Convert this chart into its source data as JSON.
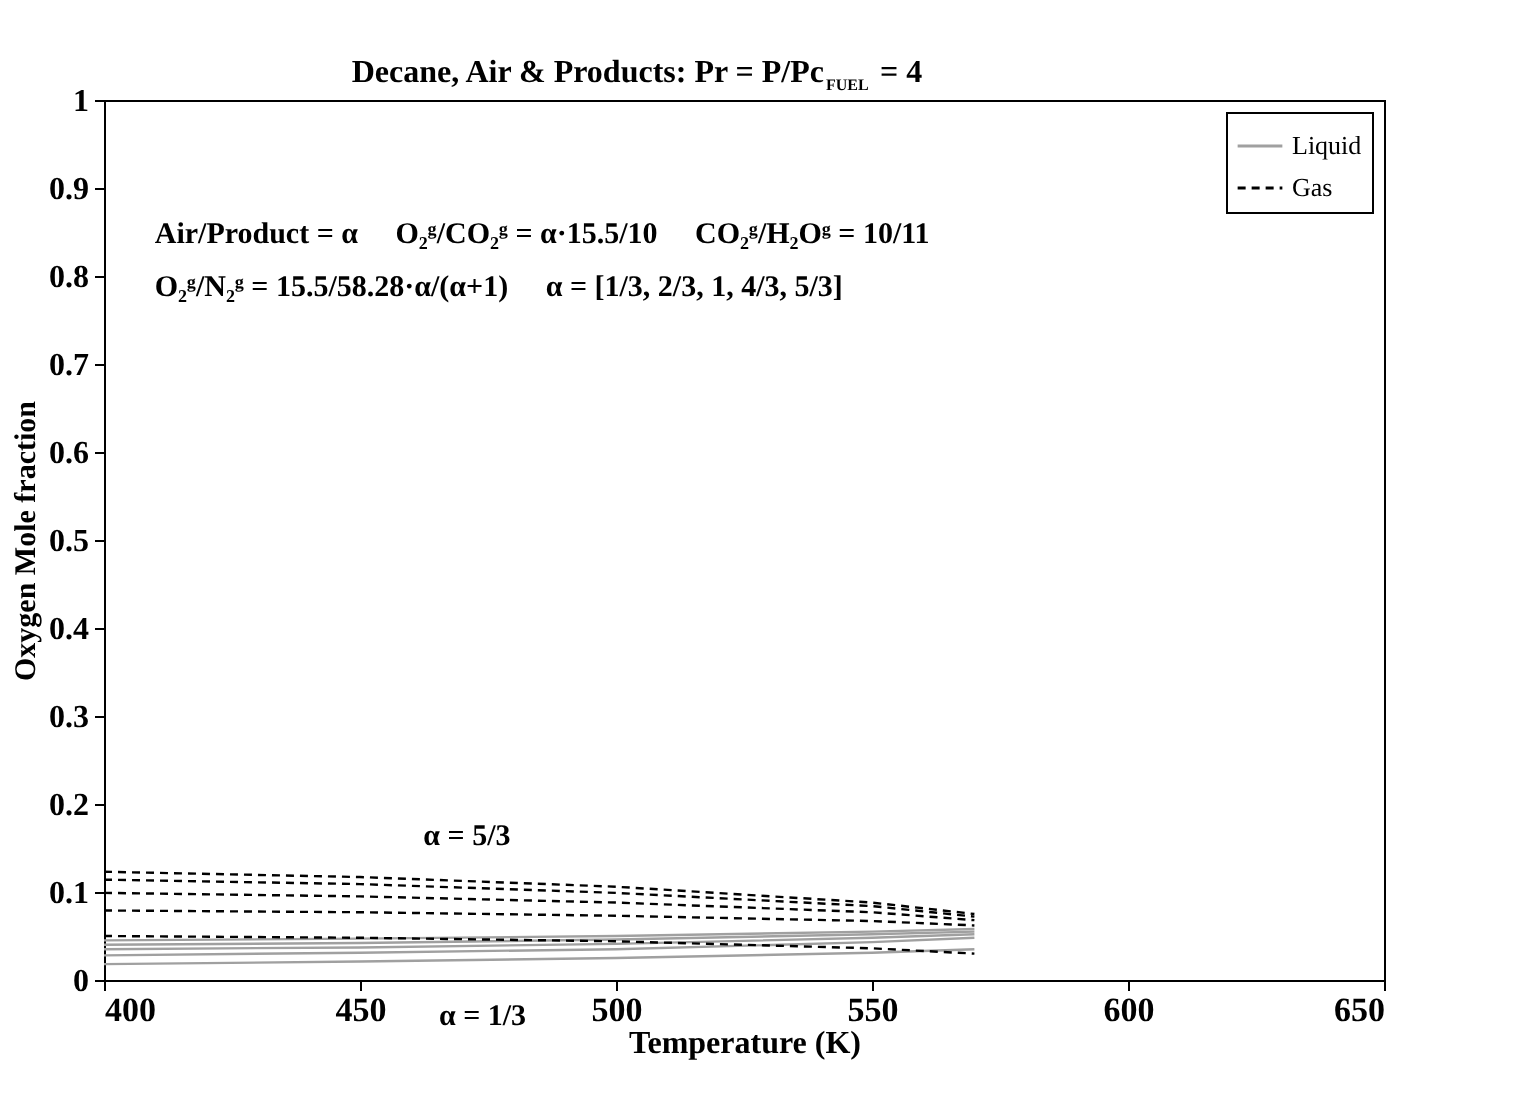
{
  "chart_data": {
    "type": "line",
    "title": "Decane, Air & Products: Pr = P/Pc$_{FUEL}$ = 4",
    "xlabel": "Temperature (K)",
    "ylabel": "Oxygen Mole fraction",
    "x": [
      400,
      450,
      500,
      550,
      570
    ],
    "series": [
      {
        "name": "Liquid",
        "color": "#a0a0a0",
        "line_style": "solid",
        "values": [
          0.045,
          0.047,
          0.05,
          0.055,
          0.058
        ]
      },
      {
        "color": "#a0a0a0",
        "line_style": "solid",
        "values": [
          0.04,
          0.042,
          0.046,
          0.052,
          0.055
        ]
      },
      {
        "color": "#a0a0a0",
        "line_style": "solid",
        "values": [
          0.035,
          0.037,
          0.041,
          0.048,
          0.052
        ]
      },
      {
        "color": "#a0a0a0",
        "line_style": "solid",
        "values": [
          0.028,
          0.031,
          0.035,
          0.043,
          0.048
        ]
      },
      {
        "color": "#a0a0a0",
        "line_style": "solid",
        "values": [
          0.018,
          0.021,
          0.025,
          0.031,
          0.035
        ]
      },
      {
        "name": "Gas",
        "color": "#000000",
        "line_style": "dashed",
        "values": [
          0.123,
          0.117,
          0.106,
          0.088,
          0.075
        ]
      },
      {
        "color": "#000000",
        "line_style": "dashed",
        "values": [
          0.114,
          0.109,
          0.099,
          0.084,
          0.072
        ]
      },
      {
        "color": "#000000",
        "line_style": "dashed",
        "values": [
          0.099,
          0.095,
          0.088,
          0.077,
          0.068
        ]
      },
      {
        "color": "#000000",
        "line_style": "dashed",
        "values": [
          0.079,
          0.077,
          0.073,
          0.067,
          0.062
        ]
      },
      {
        "color": "#000000",
        "line_style": "dashed",
        "values": [
          0.05,
          0.048,
          0.044,
          0.036,
          0.03
        ]
      }
    ],
    "xlim": [
      400,
      650
    ],
    "xticks": [
      400,
      450,
      500,
      550,
      600,
      650
    ],
    "ylim": [
      0,
      1
    ],
    "yticks": [
      0,
      0.1,
      0.2,
      0.3,
      0.4,
      0.5,
      0.6,
      0.7,
      0.8,
      0.9,
      1
    ],
    "annotations": [
      "Air/Product = α     O₂ᵍ/CO₂ᵍ = α·15.5/10     CO₂ᵍ/H₂Oᵍ = 10/11",
      "O₂ᵍ/N₂ᵍ = 15.5/58.28·α/(α+1)     α = [1/3, 2/3, 1, 4/3, 5/3]",
      "α = 5/3",
      "α = 1/3"
    ],
    "legend": "top right",
    "grid": false
  }
}
